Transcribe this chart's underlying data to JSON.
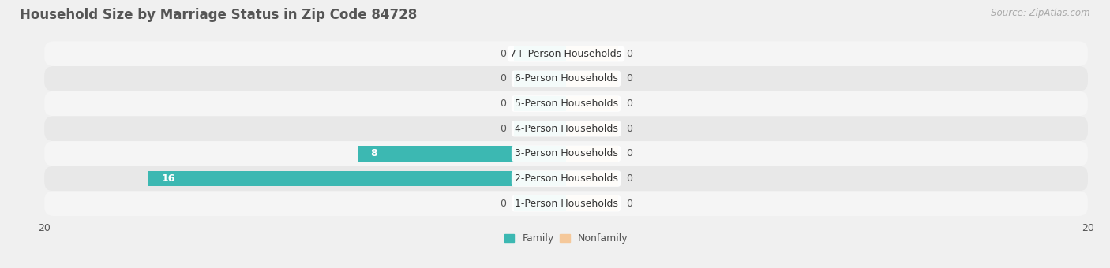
{
  "title": "Household Size by Marriage Status in Zip Code 84728",
  "source": "Source: ZipAtlas.com",
  "categories": [
    "7+ Person Households",
    "6-Person Households",
    "5-Person Households",
    "4-Person Households",
    "3-Person Households",
    "2-Person Households",
    "1-Person Households"
  ],
  "family_values": [
    0,
    0,
    0,
    0,
    8,
    16,
    0
  ],
  "nonfamily_values": [
    0,
    0,
    0,
    0,
    0,
    0,
    0
  ],
  "family_color": "#3cb8b2",
  "nonfamily_color": "#f5c89a",
  "xlim": [
    -20,
    20
  ],
  "bar_height": 0.62,
  "bg_color": "#f0f0f0",
  "row_bg_even": "#f5f5f5",
  "row_bg_odd": "#e8e8e8",
  "title_fontsize": 12,
  "source_fontsize": 8.5,
  "label_fontsize": 9,
  "tick_fontsize": 9,
  "legend_fontsize": 9,
  "stub_size": 2.0
}
